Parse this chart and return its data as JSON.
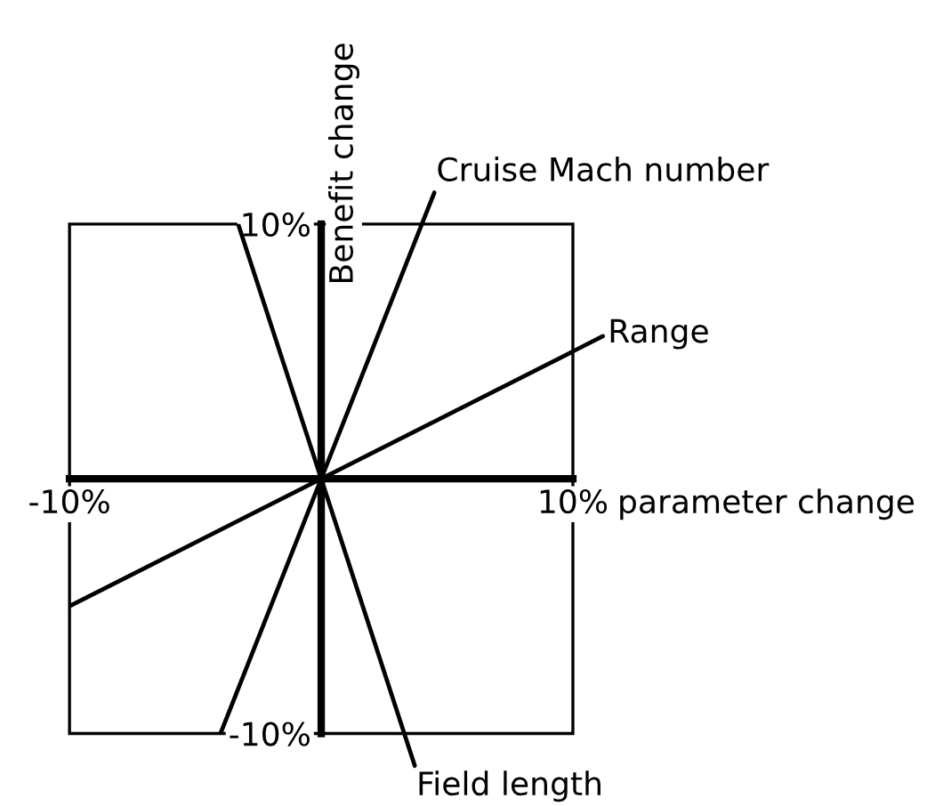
{
  "chart_data": {
    "type": "line",
    "xlabel": "parameter change",
    "ylabel": "Benefit change",
    "xlim": [
      -10,
      10
    ],
    "ylim": [
      -10,
      10
    ],
    "xticks": [
      {
        "value": -10,
        "label": "-10%"
      },
      {
        "value": 10,
        "label": "10%"
      }
    ],
    "yticks": [
      {
        "value": -10,
        "label": "-10%"
      },
      {
        "value": 10,
        "label": "10%"
      }
    ],
    "series": [
      {
        "name": "Cruise Mach number",
        "color": "#000000",
        "x": [
          -4,
          4
        ],
        "values": [
          -10,
          10
        ]
      },
      {
        "name": "Range",
        "color": "#000000",
        "x": [
          -10,
          10
        ],
        "values": [
          -5,
          5
        ]
      },
      {
        "name": "Field length",
        "color": "#000000",
        "x": [
          -3.3,
          3.3
        ],
        "values": [
          10,
          -10
        ]
      }
    ],
    "marker": "none",
    "line_style": "solid"
  }
}
